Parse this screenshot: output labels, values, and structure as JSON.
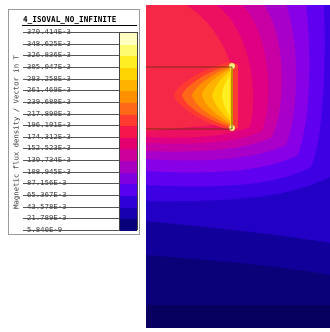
{
  "legend": {
    "title": "4_ISOVAL_NO_INFINITE",
    "axis_label": "Magnetic flux density / Vector in T",
    "ticks": [
      "370.414E-3",
      "348.625E-3",
      "326.836E-3",
      "305.047E-3",
      "283.258E-3",
      "261.469E-3",
      "239.680E-3",
      "217.890E-3",
      "196.101E-3",
      "174.312E-3",
      "152.523E-3",
      "130.734E-3",
      "108.945E-3",
      "87.156E-3",
      "65.367E-3",
      "43.578E-3",
      "21.789E-3",
      "5.840E-9"
    ],
    "colors": [
      "#ffffc0",
      "#fffb70",
      "#ffee22",
      "#ffd400",
      "#ffb200",
      "#ff9000",
      "#ff6818",
      "#ff3a30",
      "#f5164c",
      "#e4006e",
      "#cc0098",
      "#a800c0",
      "#8000e0",
      "#5800f0",
      "#3000d8",
      "#1600b0",
      "#08007a"
    ]
  },
  "plot": {
    "background_color": "#07005e"
  }
}
